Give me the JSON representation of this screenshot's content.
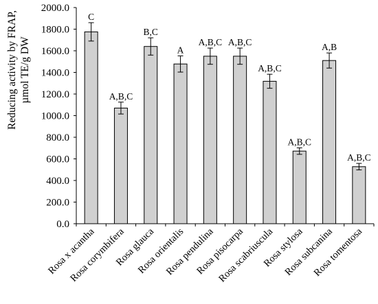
{
  "chart_data": {
    "type": "bar",
    "ylabel_lines": [
      "Reducing activity by FRAP,",
      "µmol TE/g DW"
    ],
    "xlabel": "",
    "ylim": [
      0,
      2000
    ],
    "ytick_step": 200,
    "ytick_labels": [
      "0.0",
      "200.0",
      "400.0",
      "600.0",
      "800.0",
      "1000.0",
      "1200.0",
      "1400.0",
      "1600.0",
      "1800.0",
      "2000.0"
    ],
    "grid": false,
    "legend": "none",
    "bar_color": "#d0d0d0",
    "bar_edge_color": "#000000",
    "categories": [
      "Rosa x acantha",
      "Rosa corymbifera",
      "Rosa glauca",
      "Rosa orientalis",
      "Rosa pendulina",
      "Rosa pisocarpa",
      "Rosa scabriuscula",
      "Rosa stylosa",
      "Rosa subcanina",
      "Rosa tomentosa"
    ],
    "values": [
      1775,
      1070,
      1640,
      1478,
      1550,
      1550,
      1318,
      672,
      1510,
      528
    ],
    "errors": [
      85,
      55,
      80,
      75,
      75,
      75,
      65,
      30,
      70,
      30
    ],
    "significance_labels": [
      "C",
      "A,B,C",
      "B,C",
      "A",
      "A,B,C",
      "A,B,C",
      "A,B,C",
      "A,B,C",
      "A,B",
      "A,B,C"
    ]
  }
}
